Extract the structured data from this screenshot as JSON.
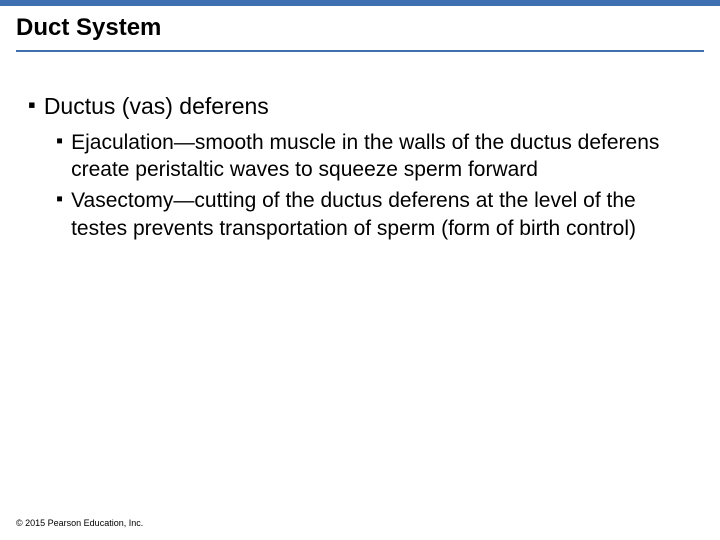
{
  "title": "Duct System",
  "content": {
    "level1": "Ductus (vas) deferens",
    "level2": [
      "Ejaculation—smooth muscle in the walls of the ductus deferens create peristaltic waves to squeeze sperm forward",
      "Vasectomy—cutting of the ductus deferens at the level of the testes prevents transportation of sperm (form of birth control)"
    ]
  },
  "footer": "© 2015 Pearson Education, Inc.",
  "style": {
    "accent_color": "#3e6fb0",
    "background_color": "#ffffff",
    "title_fontsize": 24,
    "title_fontweight": "bold",
    "level1_fontsize": 23,
    "level2_fontsize": 21,
    "footer_fontsize": 9,
    "bullet_char": "▪",
    "text_color": "#000000",
    "slide_width": 720,
    "slide_height": 540
  }
}
